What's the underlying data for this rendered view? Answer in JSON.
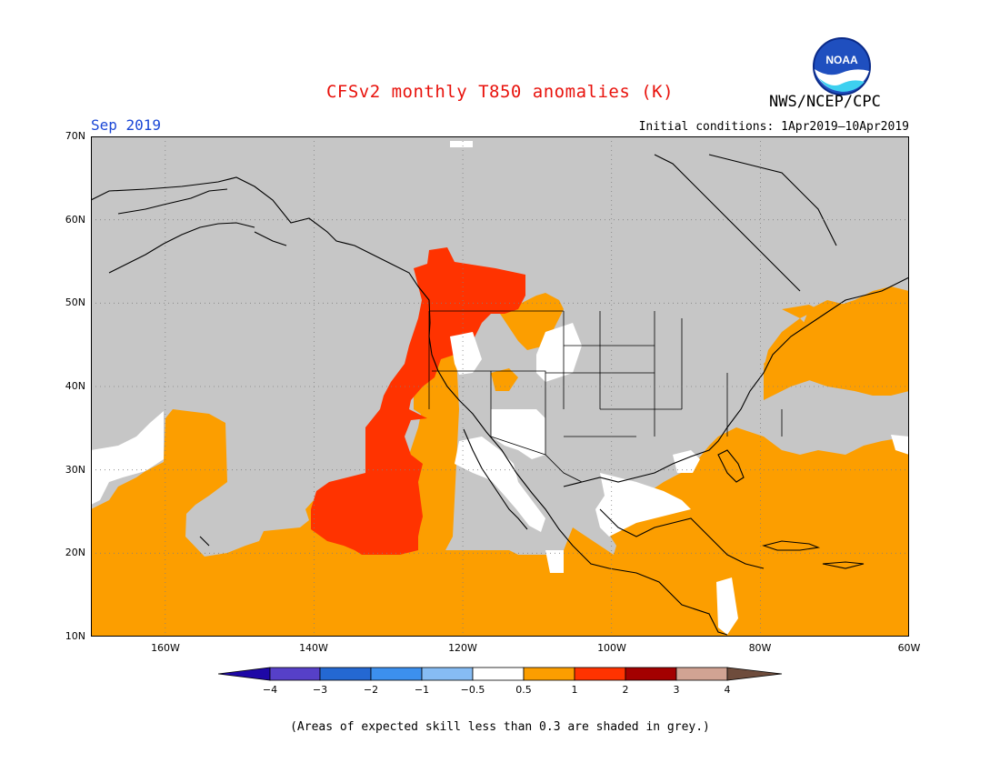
{
  "header": {
    "title": "CFSv2 monthly T850 anomalies (K)",
    "agency": "NWS/NCEP/CPC",
    "logo_text": "NOAA",
    "period": "Sep 2019",
    "initial_conditions": "Initial conditions: 1Apr2019–10Apr2019"
  },
  "map": {
    "lat_labels": [
      "70N",
      "60N",
      "50N",
      "40N",
      "30N",
      "20N",
      "10N"
    ],
    "lon_labels": [
      "160W",
      "140W",
      "120W",
      "100W",
      "80W",
      "60W"
    ],
    "extent": {
      "lon_min": -170,
      "lon_max": -60,
      "lat_min": 10,
      "lat_max": 70
    },
    "mask_color": "#c6c6c6",
    "grid": "dotted"
  },
  "colorbar": {
    "labels": [
      "−4",
      "−3",
      "−2",
      "−1",
      "−0.5",
      "0.5",
      "1",
      "2",
      "3",
      "4"
    ],
    "colors": [
      "#1e08a6",
      "#5640c8",
      "#2468d2",
      "#3c90ee",
      "#86bcf4",
      "#ffffff",
      "#fc9e00",
      "#ff3300",
      "#a30000",
      "#d1a393",
      "#6e4c3c"
    ]
  },
  "footer": {
    "note": "(Areas of expected skill less than 0.3 are shaded in grey.)"
  }
}
